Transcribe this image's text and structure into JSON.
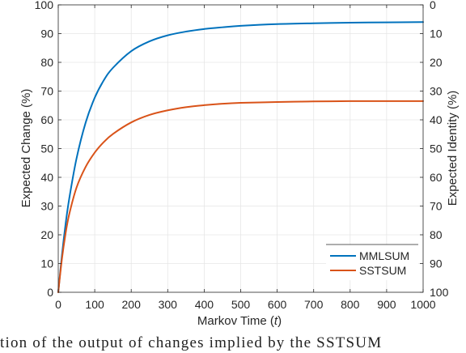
{
  "chart_data": {
    "type": "line",
    "xlabel": "Markov Time (",
    "xlabel_var": "t",
    "xlabel_end": ")",
    "ylabel": "Expected Change (%)",
    "ylabel_right": "Expected Identity (%)",
    "xlim": [
      0,
      1000
    ],
    "ylim": [
      0,
      100
    ],
    "ylim_right": [
      100,
      0
    ],
    "x_ticks": [
      "0",
      "100",
      "200",
      "300",
      "400",
      "500",
      "600",
      "700",
      "800",
      "900",
      "1000"
    ],
    "y_ticks": [
      "0",
      "10",
      "20",
      "30",
      "40",
      "50",
      "60",
      "70",
      "80",
      "90",
      "100"
    ],
    "y_ticks_right": [
      "100",
      "90",
      "80",
      "70",
      "60",
      "50",
      "40",
      "30",
      "20",
      "10",
      "0"
    ],
    "grid": true,
    "legend_position": "bottom-right",
    "x": [
      0,
      10,
      20,
      30,
      50,
      75,
      100,
      125,
      150,
      200,
      250,
      300,
      350,
      400,
      450,
      500,
      600,
      700,
      800,
      900,
      1000
    ],
    "series": [
      {
        "name": "MMLSUM",
        "color": "#0072BD",
        "values": [
          0,
          12.8,
          23.6,
          32.5,
          46.5,
          59.0,
          67.7,
          73.8,
          78.1,
          83.9,
          87.3,
          89.4,
          90.7,
          91.6,
          92.2,
          92.7,
          93.3,
          93.6,
          93.8,
          93.9,
          94.0
        ]
      },
      {
        "name": "SSTSUM",
        "color": "#D95319",
        "values": [
          0,
          11.5,
          20.4,
          27.1,
          36.4,
          43.6,
          48.6,
          52.3,
          55.1,
          59.1,
          61.7,
          63.3,
          64.4,
          65.1,
          65.6,
          65.9,
          66.2,
          66.4,
          66.5,
          66.5,
          66.5
        ]
      }
    ]
  },
  "caption_text": "tion of the output of changes implied by the SSTSUM"
}
